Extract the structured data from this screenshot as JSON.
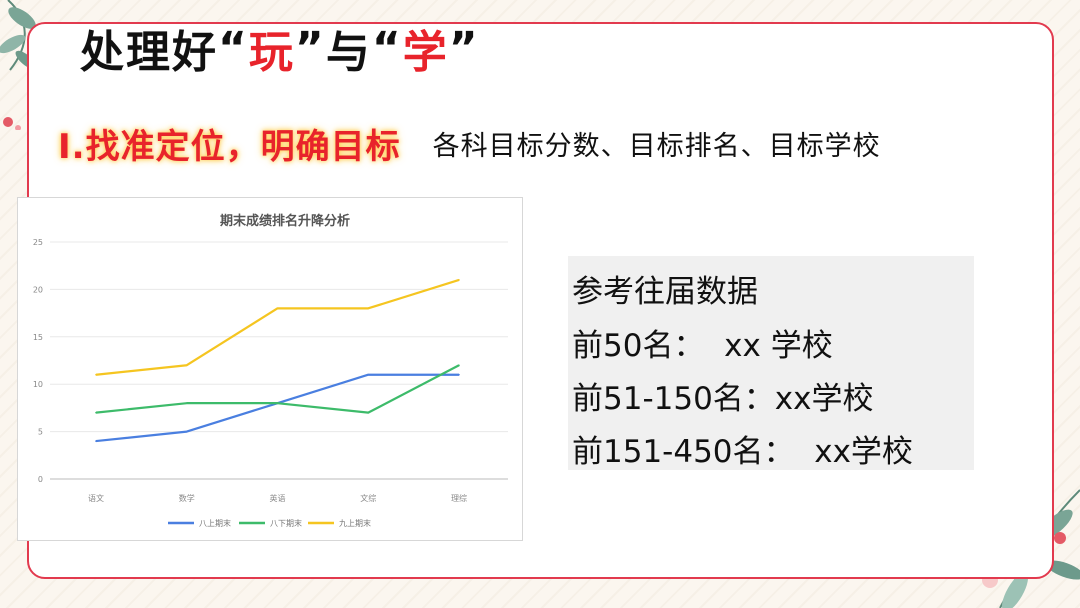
{
  "title": {
    "part1": "处理好",
    "open_quote_1": "“",
    "word1": "玩",
    "close_quote_1": "”",
    "part2": "与",
    "open_quote_2": "“",
    "word2": "学",
    "close_quote_2": "”"
  },
  "subtitle": {
    "heading": "I.找准定位，明确目标",
    "description": "各科目标分数、目标排名、目标学校"
  },
  "reference": {
    "title": "参考往届数据",
    "lines": [
      "前50名：  xx 学校",
      "前51-150名：xx学校",
      "前151-450名：  xx学校"
    ]
  },
  "colors": {
    "accent_red": "#e8232b",
    "frame_red": "#e23a4e",
    "series_blue": "#4a7fe0",
    "series_green": "#3dbb6a",
    "series_yellow": "#f5c520"
  },
  "chart_data": {
    "type": "line",
    "title": "期末成绩排名升降分析",
    "categories": [
      "语文",
      "数学",
      "英语",
      "文综",
      "理综"
    ],
    "series": [
      {
        "name": "八上期末",
        "color": "#4a7fe0",
        "values": [
          4,
          5,
          8,
          11,
          11
        ]
      },
      {
        "name": "八下期末",
        "color": "#3dbb6a",
        "values": [
          7,
          8,
          8,
          7,
          12
        ]
      },
      {
        "name": "九上期末",
        "color": "#f5c520",
        "values": [
          11,
          12,
          18,
          18,
          21
        ]
      }
    ],
    "ylim": [
      0,
      25
    ],
    "yticks": [
      0,
      5,
      10,
      15,
      20,
      25
    ],
    "xlabel": "",
    "ylabel": "",
    "grid": true,
    "legend": "bottom"
  }
}
